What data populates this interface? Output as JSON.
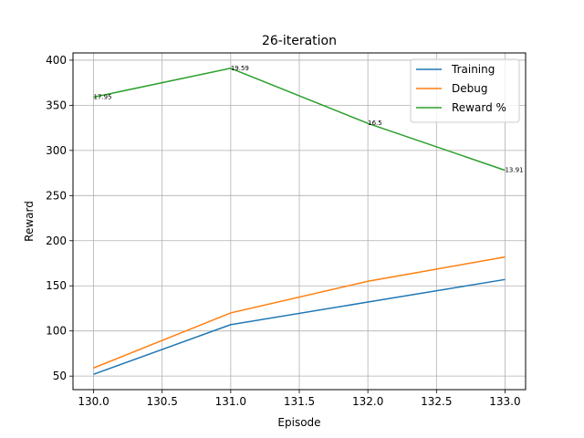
{
  "chart_data": {
    "type": "line",
    "title": "26-iteration",
    "xlabel": "Episode",
    "ylabel": "Reward",
    "x": [
      130.0,
      131.0,
      132.0,
      133.0
    ],
    "xlim": [
      129.85,
      133.15
    ],
    "ylim": [
      35,
      408
    ],
    "xticks": [
      130.0,
      130.5,
      131.0,
      131.5,
      132.0,
      132.5,
      133.0
    ],
    "xtick_labels": [
      "130.0",
      "130.5",
      "131.0",
      "131.5",
      "132.0",
      "132.5",
      "133.0"
    ],
    "yticks": [
      50,
      100,
      150,
      200,
      250,
      300,
      350,
      400
    ],
    "ytick_labels": [
      "50",
      "100",
      "150",
      "200",
      "250",
      "300",
      "350",
      "400"
    ],
    "grid": true,
    "legend_position": "top-right",
    "series": [
      {
        "name": "Training",
        "color": "#1f77b4",
        "values": [
          52,
          107,
          132,
          157
        ]
      },
      {
        "name": "Debug",
        "color": "#ff7f0e",
        "values": [
          59,
          120,
          155,
          182
        ]
      },
      {
        "name": "Reward %",
        "color": "#2ca02c",
        "values": [
          359,
          391,
          330,
          278
        ],
        "point_labels": [
          "17.95",
          "19.59",
          "16.5",
          "13.91"
        ]
      }
    ]
  }
}
